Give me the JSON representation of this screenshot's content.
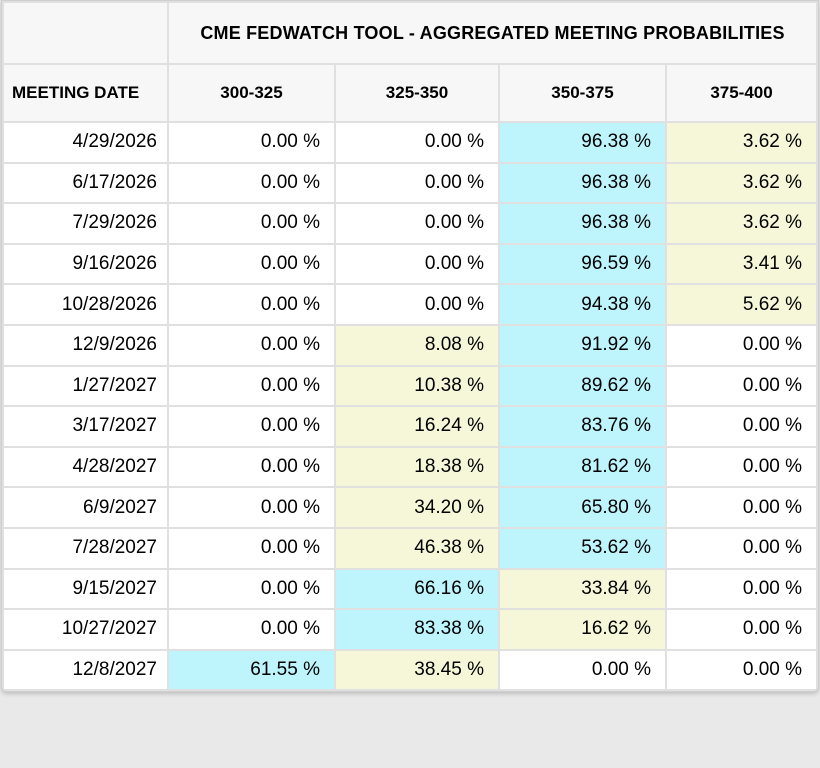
{
  "title": "CME FEDWATCH TOOL - AGGREGATED MEETING PROBABILITIES",
  "columns": [
    "MEETING DATE",
    "300-325",
    "325-350",
    "350-375",
    "375-400"
  ],
  "colors": {
    "highlight_primary": "#bef4fc",
    "highlight_secondary": "#f6f7d9",
    "header_bg": "#f7f7f7",
    "gridline": "#e0e0e0",
    "cell_bg": "#ffffff"
  },
  "rows": [
    {
      "date": "4/29/2026",
      "values": [
        "0.00 %",
        "0.00 %",
        "96.38 %",
        "3.62 %"
      ],
      "highlights": [
        null,
        null,
        "primary",
        "secondary"
      ]
    },
    {
      "date": "6/17/2026",
      "values": [
        "0.00 %",
        "0.00 %",
        "96.38 %",
        "3.62 %"
      ],
      "highlights": [
        null,
        null,
        "primary",
        "secondary"
      ]
    },
    {
      "date": "7/29/2026",
      "values": [
        "0.00 %",
        "0.00 %",
        "96.38 %",
        "3.62 %"
      ],
      "highlights": [
        null,
        null,
        "primary",
        "secondary"
      ]
    },
    {
      "date": "9/16/2026",
      "values": [
        "0.00 %",
        "0.00 %",
        "96.59 %",
        "3.41 %"
      ],
      "highlights": [
        null,
        null,
        "primary",
        "secondary"
      ]
    },
    {
      "date": "10/28/2026",
      "values": [
        "0.00 %",
        "0.00 %",
        "94.38 %",
        "5.62 %"
      ],
      "highlights": [
        null,
        null,
        "primary",
        "secondary"
      ]
    },
    {
      "date": "12/9/2026",
      "values": [
        "0.00 %",
        "8.08 %",
        "91.92 %",
        "0.00 %"
      ],
      "highlights": [
        null,
        "secondary",
        "primary",
        null
      ]
    },
    {
      "date": "1/27/2027",
      "values": [
        "0.00 %",
        "10.38 %",
        "89.62 %",
        "0.00 %"
      ],
      "highlights": [
        null,
        "secondary",
        "primary",
        null
      ]
    },
    {
      "date": "3/17/2027",
      "values": [
        "0.00 %",
        "16.24 %",
        "83.76 %",
        "0.00 %"
      ],
      "highlights": [
        null,
        "secondary",
        "primary",
        null
      ]
    },
    {
      "date": "4/28/2027",
      "values": [
        "0.00 %",
        "18.38 %",
        "81.62 %",
        "0.00 %"
      ],
      "highlights": [
        null,
        "secondary",
        "primary",
        null
      ]
    },
    {
      "date": "6/9/2027",
      "values": [
        "0.00 %",
        "34.20 %",
        "65.80 %",
        "0.00 %"
      ],
      "highlights": [
        null,
        "secondary",
        "primary",
        null
      ]
    },
    {
      "date": "7/28/2027",
      "values": [
        "0.00 %",
        "46.38 %",
        "53.62 %",
        "0.00 %"
      ],
      "highlights": [
        null,
        "secondary",
        "primary",
        null
      ]
    },
    {
      "date": "9/15/2027",
      "values": [
        "0.00 %",
        "66.16 %",
        "33.84 %",
        "0.00 %"
      ],
      "highlights": [
        null,
        "primary",
        "secondary",
        null
      ]
    },
    {
      "date": "10/27/2027",
      "values": [
        "0.00 %",
        "83.38 %",
        "16.62 %",
        "0.00 %"
      ],
      "highlights": [
        null,
        "primary",
        "secondary",
        null
      ]
    },
    {
      "date": "12/8/2027",
      "values": [
        "61.55 %",
        "38.45 %",
        "0.00 %",
        "0.00 %"
      ],
      "highlights": [
        "primary",
        "secondary",
        null,
        null
      ]
    }
  ]
}
